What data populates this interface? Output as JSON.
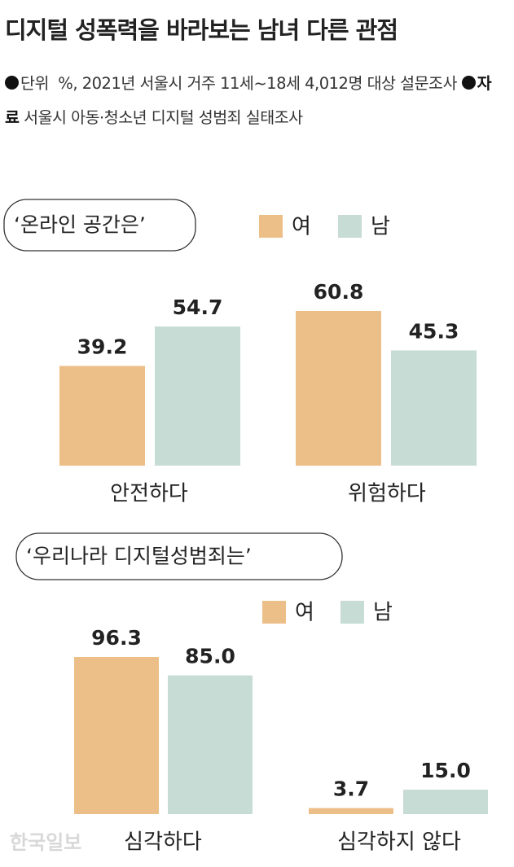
{
  "header": {
    "title": "디지털 성폭력을 바라보는 남녀 다른 관점",
    "unit_label": "단위",
    "unit_text": "%, 2021년 서울시 거주 11세~18세 4,012명 대상 설문조사",
    "source_label": "자료",
    "source_text": "서울시 아동·청소년 디지털 성범죄 실태조사",
    "watermark": "한국일보"
  },
  "chart_data": [
    {
      "type": "bar",
      "title": "‘온라인 공간은’",
      "categories": [
        "안전하다",
        "위험하다"
      ],
      "series": [
        {
          "name": "여",
          "color": "#edbf88",
          "values": [
            39.2,
            60.8
          ],
          "value_labels": [
            "39.2",
            "60.8"
          ]
        },
        {
          "name": "남",
          "color": "#c6dcd4",
          "values": [
            54.7,
            45.3
          ],
          "value_labels": [
            "54.7",
            "45.3"
          ]
        }
      ]
    },
    {
      "type": "bar",
      "title": "‘우리나라 디지털성범죄는’",
      "categories": [
        "심각하다",
        "심각하지 않다"
      ],
      "series": [
        {
          "name": "여",
          "color": "#edbf88",
          "values": [
            96.3,
            3.7
          ],
          "value_labels": [
            "96.3",
            "3.7"
          ]
        },
        {
          "name": "남",
          "color": "#c6dcd4",
          "values": [
            85.0,
            15.0
          ],
          "value_labels": [
            "85.0",
            "15.0"
          ]
        }
      ]
    }
  ]
}
